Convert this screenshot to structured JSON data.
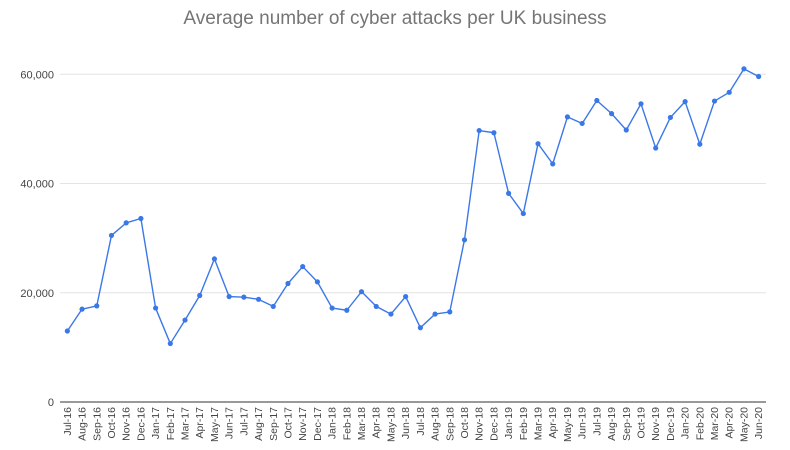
{
  "chart_data": {
    "type": "line",
    "title": "Average number of cyber attacks per UK business",
    "xlabel": "",
    "ylabel": "",
    "ylim": [
      0,
      65000
    ],
    "yticks": [
      0,
      20000,
      40000,
      60000
    ],
    "ytick_labels": [
      "0",
      "20,000",
      "40,000",
      "60,000"
    ],
    "grid": true,
    "legend": "none",
    "line_color": "#3b78e7",
    "categories": [
      "Jul-16",
      "Aug-16",
      "Sep-16",
      "Oct-16",
      "Nov-16",
      "Dec-16",
      "Jan-17",
      "Feb-17",
      "Mar-17",
      "Apr-17",
      "May-17",
      "Jun-17",
      "Jul-17",
      "Aug-17",
      "Sep-17",
      "Oct-17",
      "Nov-17",
      "Dec-17",
      "Jan-18",
      "Feb-18",
      "Mar-18",
      "Apr-18",
      "May-18",
      "Jun-18",
      "Jul-18",
      "Aug-18",
      "Sep-18",
      "Oct-18",
      "Nov-18",
      "Dec-18",
      "Jan-19",
      "Feb-19",
      "Mar-19",
      "Apr-19",
      "May-19",
      "Jun-19",
      "Jul-19",
      "Aug-19",
      "Sep-19",
      "Oct-19",
      "Nov-19",
      "Dec-19",
      "Jan-20",
      "Feb-20",
      "Mar-20",
      "Apr-20",
      "May-20",
      "Jun-20"
    ],
    "series": [
      {
        "name": "",
        "values": [
          13000,
          17000,
          17600,
          30500,
          32800,
          33600,
          17200,
          10700,
          15000,
          19500,
          26200,
          19300,
          19200,
          18800,
          17500,
          21700,
          24800,
          22000,
          17200,
          16800,
          20200,
          17500,
          16100,
          19300,
          13600,
          16100,
          16500,
          29700,
          49700,
          49300,
          38200,
          34500,
          47300,
          43600,
          52200,
          51000,
          55200,
          52800,
          49800,
          54600,
          46500,
          52100,
          55000,
          47200,
          55100,
          56700,
          61000,
          59600
        ]
      }
    ]
  }
}
